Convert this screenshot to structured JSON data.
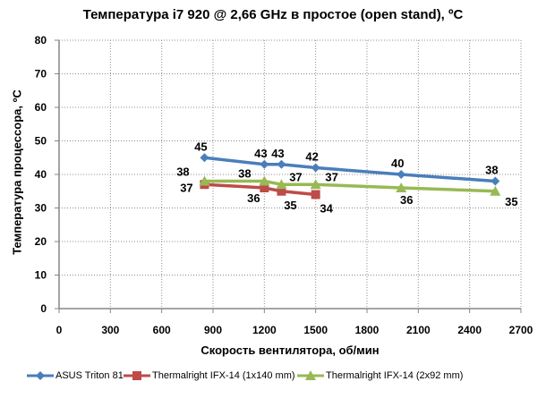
{
  "chart_data": {
    "type": "line",
    "title": "Температура i7 920 @ 2,66 GHz в простое (open stand), ºC",
    "xlabel": "Скорость вентилятора, об/мин",
    "ylabel": "Температура процессора, ºC",
    "xlim": [
      0,
      2700
    ],
    "ylim": [
      0,
      80
    ],
    "x_ticks": [
      "0",
      "300",
      "600",
      "900",
      "1200",
      "1500",
      "1800",
      "2100",
      "2400",
      "2700"
    ],
    "y_ticks": [
      "0",
      "10",
      "20",
      "30",
      "40",
      "50",
      "60",
      "70",
      "80"
    ],
    "grid": true,
    "legend_position": "bottom",
    "series": [
      {
        "name": "ASUS Triton 81",
        "color": "#4a7ebb",
        "marker": "diamond",
        "x": [
          850,
          1200,
          1300,
          1500,
          2000,
          2550
        ],
        "values": [
          45,
          43,
          43,
          42,
          40,
          38
        ]
      },
      {
        "name": "Thermalright IFX-14 (1x140 mm)",
        "color": "#be4b48",
        "marker": "square",
        "x": [
          850,
          1200,
          1300,
          1500
        ],
        "values": [
          37,
          36,
          35,
          34
        ]
      },
      {
        "name": "Thermalright IFX-14 (2x92 mm)",
        "color": "#98b954",
        "marker": "triangle",
        "x": [
          850,
          1200,
          1300,
          1500,
          2000,
          2550
        ],
        "values": [
          38,
          38,
          37,
          37,
          36,
          35
        ]
      }
    ]
  }
}
